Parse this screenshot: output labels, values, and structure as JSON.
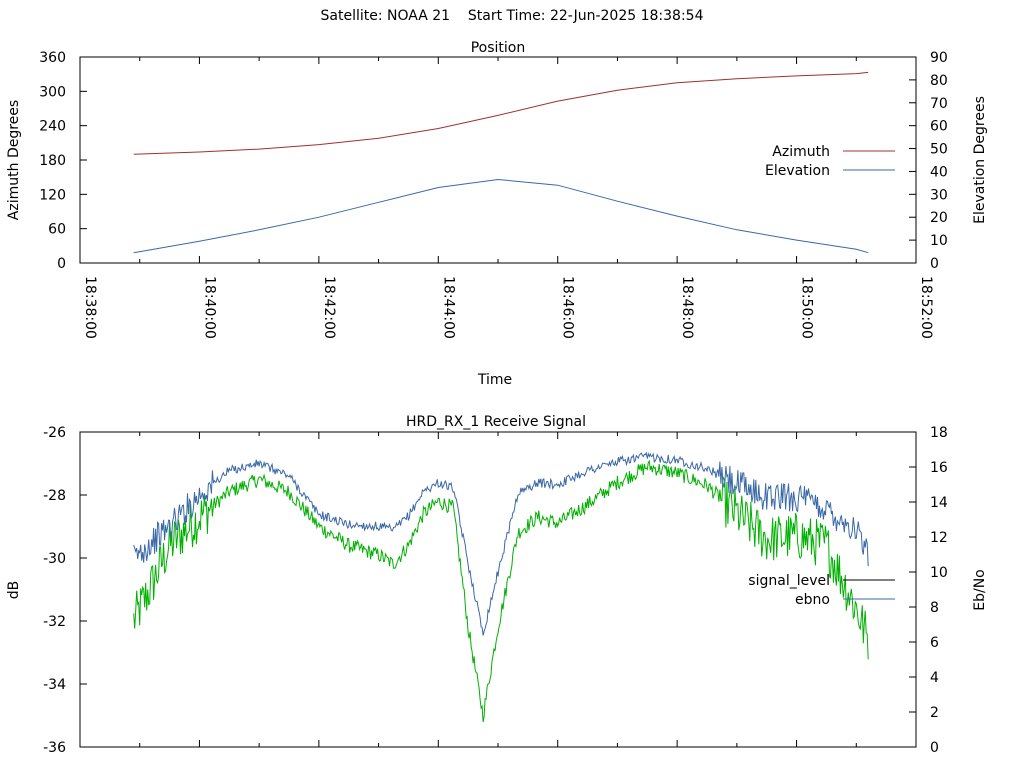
{
  "header": {
    "satellite_label": "Satellite: NOAA 21",
    "start_label": "Start Time: 22-Jun-2025 18:38:54"
  },
  "chart_data": [
    {
      "type": "line",
      "title": "Position",
      "xlabel": "Time",
      "ylabel": "Azimuth Degrees",
      "y2label": "Elevation Degrees",
      "xlim": [
        "18:38:00",
        "18:52:00"
      ],
      "x_ticks": [
        "18:38:00",
        "18:40:00",
        "18:42:00",
        "18:44:00",
        "18:46:00",
        "18:48:00",
        "18:50:00",
        "18:52:00"
      ],
      "ylim": [
        0,
        360
      ],
      "y_ticks": [
        "0",
        "60",
        "120",
        "180",
        "240",
        "300",
        "360"
      ],
      "y2lim": [
        0,
        90
      ],
      "y2_ticks": [
        "0",
        "10",
        "20",
        "30",
        "40",
        "50",
        "60",
        "70",
        "80",
        "90"
      ],
      "legend_position": "right",
      "grid": false,
      "series": [
        {
          "name": "Azimuth",
          "axis": "left",
          "color": "#a0302f",
          "x": [
            "18:38:54",
            "18:40:00",
            "18:41:00",
            "18:42:00",
            "18:43:00",
            "18:44:00",
            "18:45:00",
            "18:46:00",
            "18:47:00",
            "18:48:00",
            "18:49:00",
            "18:50:00",
            "18:51:00",
            "18:51:12"
          ],
          "values": [
            190,
            194,
            199,
            207,
            218,
            235,
            258,
            283,
            302,
            315,
            322,
            327,
            331,
            333
          ]
        },
        {
          "name": "Elevation",
          "axis": "right",
          "color": "#3a68a8",
          "x": [
            "18:38:54",
            "18:40:00",
            "18:41:00",
            "18:42:00",
            "18:43:00",
            "18:44:00",
            "18:45:00",
            "18:46:00",
            "18:47:00",
            "18:48:00",
            "18:49:00",
            "18:50:00",
            "18:51:00",
            "18:51:12"
          ],
          "values": [
            4.5,
            9.5,
            14.5,
            20,
            26.5,
            33,
            36.5,
            34,
            27,
            20.5,
            14.5,
            10,
            6,
            4.5
          ]
        }
      ]
    },
    {
      "type": "line",
      "title": "HRD_RX_1 Receive Signal",
      "ylabel": "dB",
      "y2label": "Eb/No",
      "xlim": [
        "18:38:00",
        "18:52:00"
      ],
      "ylim": [
        -36,
        -26
      ],
      "y_ticks": [
        "-36",
        "-34",
        "-32",
        "-30",
        "-28",
        "-26"
      ],
      "y2lim": [
        0,
        18
      ],
      "y2_ticks": [
        "0",
        "2",
        "4",
        "6",
        "8",
        "10",
        "12",
        "14",
        "16",
        "18"
      ],
      "legend_position": "right",
      "grid": false,
      "series": [
        {
          "name": "signal_level",
          "axis": "left",
          "legend_color": "#000000",
          "color": "#00b000",
          "x": [
            "18:38:54",
            "18:39:10",
            "18:39:30",
            "18:40:00",
            "18:40:30",
            "18:41:00",
            "18:41:30",
            "18:42:00",
            "18:42:30",
            "18:43:00",
            "18:43:15",
            "18:43:30",
            "18:43:45",
            "18:44:00",
            "18:44:15",
            "18:44:30",
            "18:44:45",
            "18:45:00",
            "18:45:20",
            "18:45:40",
            "18:46:00",
            "18:46:30",
            "18:47:00",
            "18:47:30",
            "18:48:00",
            "18:48:30",
            "18:49:00",
            "18:49:30",
            "18:50:00",
            "18:50:30",
            "18:51:00",
            "18:51:12"
          ],
          "values": [
            -32.0,
            -31.0,
            -29.6,
            -28.7,
            -27.9,
            -27.5,
            -27.9,
            -29.0,
            -29.6,
            -29.9,
            -30.2,
            -29.6,
            -28.6,
            -28.2,
            -28.4,
            -32.2,
            -35.0,
            -32.2,
            -29.2,
            -28.7,
            -28.9,
            -28.3,
            -27.6,
            -27.1,
            -27.3,
            -27.7,
            -28.6,
            -29.4,
            -29.3,
            -29.6,
            -31.6,
            -32.6
          ]
        },
        {
          "name": "ebno",
          "axis": "right",
          "color": "#3a68a8",
          "x": [
            "18:38:54",
            "18:39:10",
            "18:39:30",
            "18:40:00",
            "18:40:30",
            "18:41:00",
            "18:41:30",
            "18:42:00",
            "18:42:30",
            "18:43:00",
            "18:43:15",
            "18:43:30",
            "18:43:45",
            "18:44:00",
            "18:44:15",
            "18:44:30",
            "18:44:45",
            "18:45:00",
            "18:45:20",
            "18:45:40",
            "18:46:00",
            "18:46:30",
            "18:47:00",
            "18:47:30",
            "18:48:00",
            "18:48:30",
            "18:49:00",
            "18:49:30",
            "18:50:00",
            "18:50:30",
            "18:51:00",
            "18:51:12"
          ],
          "values": [
            10.8,
            11.6,
            12.6,
            14.4,
            15.8,
            16.2,
            15.5,
            13.3,
            12.7,
            12.6,
            12.4,
            13.2,
            14.6,
            15.1,
            14.8,
            10.5,
            6.5,
            10.0,
            14.5,
            15.1,
            15.0,
            15.8,
            16.3,
            16.6,
            16.4,
            15.9,
            15.0,
            14.3,
            14.3,
            13.6,
            12.4,
            10.9
          ]
        }
      ]
    }
  ]
}
